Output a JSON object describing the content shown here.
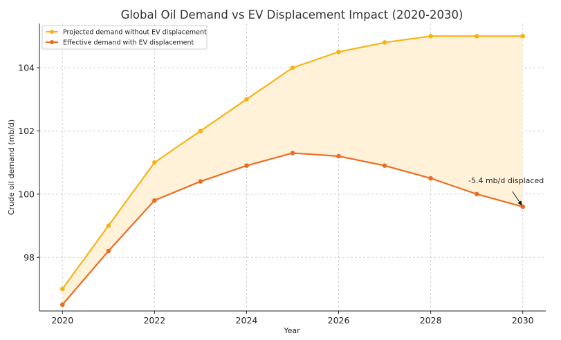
{
  "chart_data": {
    "type": "line",
    "title": "Global Oil Demand vs EV Displacement Impact (2020-2030)",
    "xlabel": "Year",
    "ylabel": "Crude oil demand (mb/d)",
    "x": [
      2020,
      2021,
      2022,
      2023,
      2024,
      2025,
      2026,
      2027,
      2028,
      2029,
      2030
    ],
    "xlim": [
      2019.5,
      2030.5
    ],
    "ylim": [
      96.3,
      105.4
    ],
    "x_ticks": [
      2020,
      2022,
      2024,
      2026,
      2028,
      2030
    ],
    "y_ticks": [
      98,
      100,
      102,
      104
    ],
    "grid": true,
    "legend_position": "top-left",
    "fill_between": {
      "color": "#fff2d9"
    },
    "series": [
      {
        "name": "Projected demand without EV displacement",
        "color": "#f7b316",
        "values": [
          97.0,
          99.0,
          101.0,
          102.0,
          103.0,
          104.0,
          104.5,
          104.8,
          105.0,
          105.0,
          105.0
        ]
      },
      {
        "name": "Effective demand with EV displacement",
        "color": "#ee6c22",
        "values": [
          96.5,
          98.2,
          99.8,
          100.4,
          100.9,
          101.3,
          101.2,
          100.9,
          100.5,
          100.0,
          99.6
        ]
      }
    ],
    "annotation": {
      "text": "-5.4 mb/d displaced",
      "x": 2030,
      "y": 99.6
    }
  }
}
